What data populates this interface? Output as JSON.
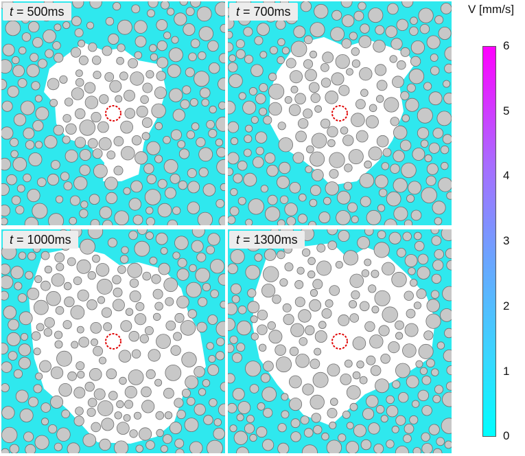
{
  "panels": [
    {
      "label_prefix": "t",
      "label_suffix": " = 500ms"
    },
    {
      "label_prefix": "t",
      "label_suffix": " = 700ms"
    },
    {
      "label_prefix": "t",
      "label_suffix": " = 1000ms"
    },
    {
      "label_prefix": "t",
      "label_suffix": " = 1300ms"
    }
  ],
  "colorbar": {
    "title": "V [mm/s]",
    "min": 0,
    "max": 6,
    "ticks": [
      "0",
      "1",
      "2",
      "3",
      "4",
      "5",
      "6"
    ],
    "colors": {
      "low": "#00ffff",
      "high": "#ff00ff"
    }
  },
  "colors": {
    "fluid": "#2fe8ee",
    "grain_fill": "#c8c8c8",
    "grain_stroke": "#6e6e6e",
    "dry_region": "#ffffff",
    "source_marker": "#e00000"
  }
}
